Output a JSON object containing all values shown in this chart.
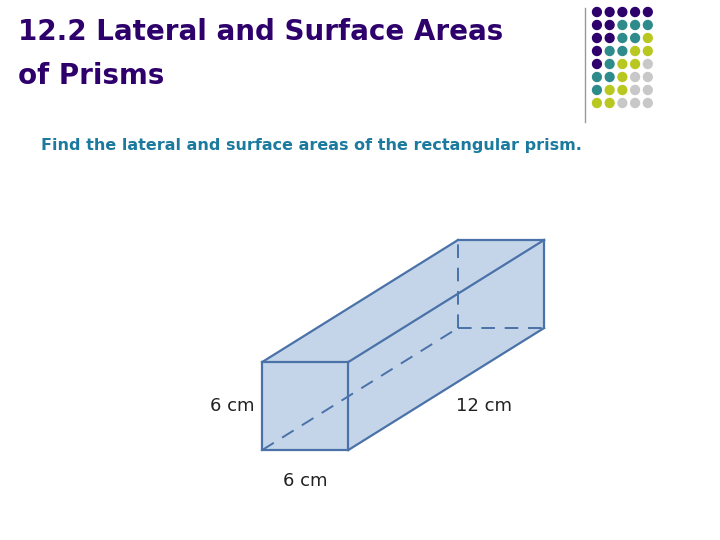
{
  "title_line1": "12.2 Lateral and Surface Areas",
  "title_line2": "of Prisms",
  "subtitle": "Find the lateral and surface areas of the rectangular prism.",
  "title_color": "#2E006C",
  "subtitle_color": "#1B7A9E",
  "bg_color": "#ffffff",
  "prism": {
    "face_fill": "#B0C8E4",
    "face_edge": "#4A72A8",
    "face_alpha": 0.75
  },
  "label_6cm_left": "6 cm",
  "label_6cm_bottom": "6 cm",
  "label_12cm": "12 cm",
  "dot_colors_pattern": [
    [
      "#2E006C",
      "#2E006C",
      "#2E006C",
      "#2E006C",
      "#2E006C"
    ],
    [
      "#2E006C",
      "#2E006C",
      "#2E8B8B",
      "#2E8B8B",
      "#2E8B8B"
    ],
    [
      "#2E006C",
      "#2E006C",
      "#2E8B8B",
      "#2E8B8B",
      "#B8C820"
    ],
    [
      "#2E006C",
      "#2E8B8B",
      "#2E8B8B",
      "#B8C820",
      "#B8C820"
    ],
    [
      "#2E006C",
      "#2E8B8B",
      "#B8C820",
      "#B8C820",
      "#C8C8C8"
    ],
    [
      "#2E8B8B",
      "#2E8B8B",
      "#B8C820",
      "#C8C8C8",
      "#C8C8C8"
    ],
    [
      "#2E8B8B",
      "#B8C820",
      "#B8C820",
      "#C8C8C8",
      "#C8C8C8"
    ],
    [
      "#B8C820",
      "#B8C820",
      "#C8C8C8",
      "#C8C8C8",
      "#C8C8C8"
    ]
  ]
}
